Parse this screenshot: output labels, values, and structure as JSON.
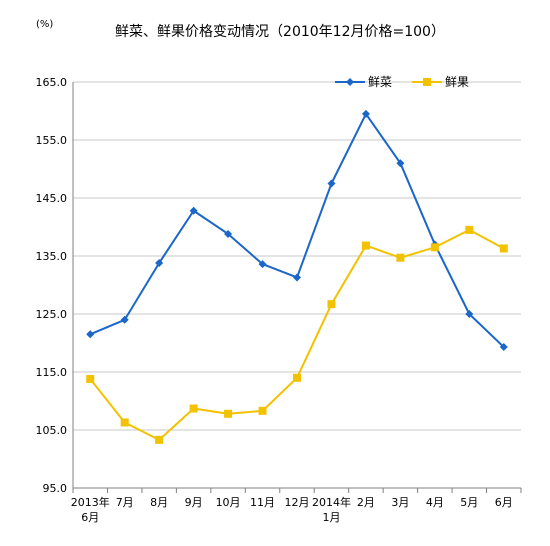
{
  "chart_data": {
    "type": "line",
    "title": "鲜菜、鲜果价格变动情况（2010年12月价格=100）",
    "unit": "(%)",
    "xlabel": "",
    "ylabel": "",
    "ylim": [
      95.0,
      165.0
    ],
    "yticks": [
      "95.0",
      "105.0",
      "115.0",
      "125.0",
      "135.0",
      "145.0",
      "155.0",
      "165.0"
    ],
    "categories": [
      [
        "2013年",
        "6月"
      ],
      [
        "7月"
      ],
      [
        "8月"
      ],
      [
        "9月"
      ],
      [
        "10月"
      ],
      [
        "11月"
      ],
      [
        "12月"
      ],
      [
        "2014年",
        "1月"
      ],
      [
        "2月"
      ],
      [
        "3月"
      ],
      [
        "4月"
      ],
      [
        "5月"
      ],
      [
        "6月"
      ]
    ],
    "grid": true,
    "legend_position": "top-right",
    "series": [
      {
        "name": "鲜菜",
        "color": "#1a66c9",
        "marker": "diamond",
        "values": [
          121.5,
          124.0,
          133.8,
          142.8,
          138.8,
          133.6,
          131.3,
          147.5,
          159.5,
          151.0,
          137.0,
          125.0,
          119.3
        ]
      },
      {
        "name": "鲜果",
        "color": "#f2c200",
        "marker": "square",
        "values": [
          113.8,
          106.3,
          103.3,
          108.7,
          107.8,
          108.3,
          114.0,
          126.7,
          136.8,
          134.7,
          136.5,
          139.5,
          136.3
        ]
      }
    ]
  }
}
